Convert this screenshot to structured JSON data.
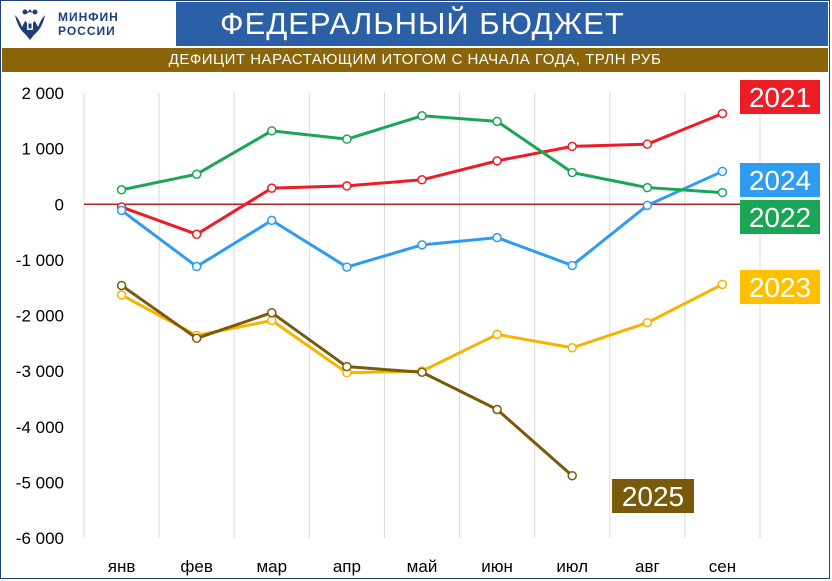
{
  "header": {
    "logo_line1": "МИНФИН",
    "logo_line2": "РОССИИ",
    "title": "ФЕДЕРАЛЬНЫЙ БЮДЖЕТ",
    "subtitle": "ДЕФИЦИТ НАРАСТАЮЩИМ ИТОГОМ С НАЧАЛА ГОДА, ТРЛН РУБ"
  },
  "colors": {
    "title_bg": "#2b5fa6",
    "subtitle_bg": "#8a6509",
    "zero_line": "#b22222",
    "grid": "#d9d9d9"
  },
  "chart_data": {
    "type": "line",
    "title": "ФЕДЕРАЛЬНЫЙ БЮДЖЕТ",
    "subtitle": "ДЕФИЦИТ НАРАСТАЮЩИМ ИТОГОМ С НАЧАЛА ГОДА, ТРЛН РУБ",
    "categories": [
      "янв",
      "фев",
      "мар",
      "апр",
      "май",
      "июн",
      "июл",
      "авг",
      "сен"
    ],
    "y_ticks": [
      2000,
      1000,
      0,
      -1000,
      -2000,
      -3000,
      -4000,
      -5000,
      -6000
    ],
    "y_tick_labels": [
      "2 000",
      "1 000",
      "0",
      "-1 000",
      "-2 000",
      "-3 000",
      "-4 000",
      "-5 000",
      "-6 000"
    ],
    "ylim": [
      -6000,
      2000
    ],
    "grid": "vertical",
    "series": [
      {
        "name": "2021",
        "color": "#ee1c25",
        "label_bg": "#ee1c25",
        "label_fg": "#ffffff",
        "values": [
          -50,
          -540,
          290,
          330,
          440,
          780,
          1040,
          1080,
          1630
        ]
      },
      {
        "name": "2024",
        "color": "#2e9cf0",
        "label_bg": "#2e9cf0",
        "label_fg": "#ffffff",
        "values": [
          -110,
          -1120,
          -290,
          -1130,
          -730,
          -600,
          -1100,
          -20,
          590
        ]
      },
      {
        "name": "2022",
        "color": "#1aa654",
        "label_bg": "#1aa654",
        "label_fg": "#ffffff",
        "values": [
          260,
          540,
          1320,
          1170,
          1590,
          1490,
          570,
          300,
          210
        ]
      },
      {
        "name": "2023",
        "color": "#f5b400",
        "label_bg": "#ffc000",
        "label_fg": "#ffffff",
        "values": [
          -1630,
          -2360,
          -2090,
          -3030,
          -3000,
          -2340,
          -2580,
          -2130,
          -1440
        ]
      },
      {
        "name": "2025",
        "color": "#7a5a0a",
        "label_bg": "#7a5a0a",
        "label_fg": "#ffffff",
        "values": [
          -1460,
          -2410,
          -1950,
          -2920,
          -3020,
          -3690,
          -4880,
          null,
          null
        ]
      }
    ]
  }
}
